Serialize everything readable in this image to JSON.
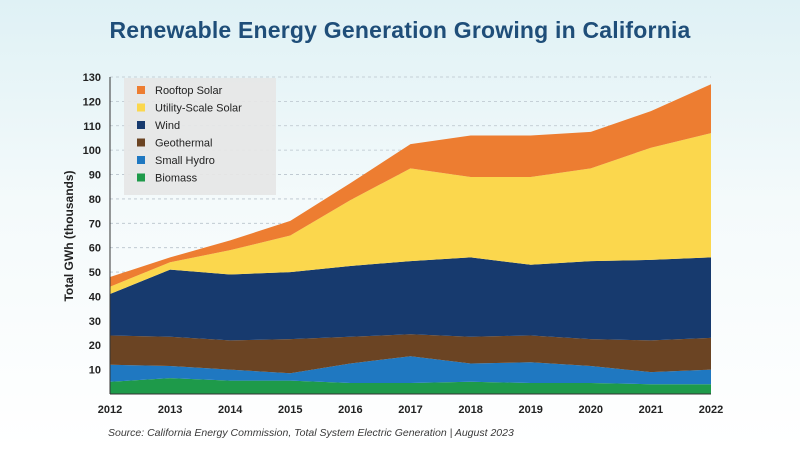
{
  "title": "Renewable Energy Generation Growing in California",
  "source": "Source: California Energy Commission, Total System Electric Generation  |  August 2023",
  "chart_data": {
    "type": "area",
    "stacked": true,
    "title": "Renewable Energy Generation Growing in California",
    "xlabel": "",
    "ylabel": "Total GWh (thousands)",
    "x": [
      2012,
      2013,
      2014,
      2015,
      2016,
      2017,
      2018,
      2019,
      2020,
      2021,
      2022
    ],
    "ylim": [
      0,
      130
    ],
    "yticks": [
      10,
      20,
      30,
      40,
      50,
      60,
      70,
      80,
      90,
      100,
      110,
      120,
      130
    ],
    "grid": true,
    "legend_position": "top-left",
    "series": [
      {
        "name": "Biomass",
        "color": "#1e9a4a",
        "values": [
          5,
          6.5,
          5.5,
          5.5,
          4.5,
          4.5,
          5,
          4.5,
          4.5,
          4,
          4
        ]
      },
      {
        "name": "Small Hydro",
        "color": "#1f78c1",
        "values": [
          7,
          5,
          4.5,
          3,
          8,
          11,
          7.5,
          8.5,
          7,
          5,
          6
        ]
      },
      {
        "name": "Geothermal",
        "color": "#6b4423",
        "values": [
          12,
          12,
          12,
          14,
          11,
          9,
          11,
          11,
          11,
          13,
          13
        ]
      },
      {
        "name": "Wind",
        "color": "#173a6e",
        "values": [
          17,
          27.5,
          27,
          27.5,
          29,
          30,
          32.5,
          29,
          32,
          33,
          33
        ]
      },
      {
        "name": "Utility-Scale Solar",
        "color": "#fbd74d",
        "values": [
          3,
          3,
          10,
          15,
          27,
          38,
          33,
          36,
          38,
          46,
          51
        ]
      },
      {
        "name": "Rooftop Solar",
        "color": "#ed7d31",
        "values": [
          4,
          2,
          4,
          6,
          7,
          10,
          17,
          17,
          15,
          15,
          20
        ]
      }
    ]
  }
}
